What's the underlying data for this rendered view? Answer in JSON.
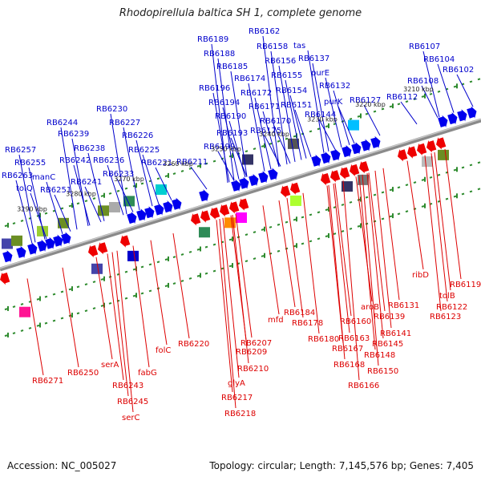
{
  "title": "Rhodopirellula baltica SH 1, complete genome",
  "footer": {
    "accession": "Accession: NC_005027",
    "topology": "Topology: circular; Length: 7,145,576 bp; Genes: 7,405"
  },
  "colors": {
    "forward_gene": "#0000ee",
    "reverse_gene": "#ee0000",
    "backbone": "#8a8a8a",
    "ruler_dots": "#2e8b2e",
    "forward_label": "#0000cc",
    "reverse_label": "#dd0000"
  },
  "ruler_labels": [
    "3290 kbp",
    "3280 kbp",
    "3270 kbp",
    "3260 kbp",
    "3250 kbp",
    "3240 kbp",
    "3230 kbp",
    "3220 kbp",
    "3210 kbp"
  ],
  "forward_labels": [
    "RB6257",
    "RB6255",
    "RB6263",
    "tolQ",
    "manC",
    "RB6251",
    "RB6244",
    "RB6239",
    "RB6238",
    "RB6242",
    "RB6236",
    "RB6241",
    "RB6233",
    "RB6230",
    "RB6227",
    "RB6226",
    "RB6225",
    "RB6221",
    "RB6211",
    "RB6199",
    "RB6189",
    "RB6188",
    "RB6185",
    "RB6196",
    "RB6194",
    "RB6190",
    "RB6193",
    "RB6174",
    "RB6172",
    "RB6171",
    "RB6175",
    "RB6170",
    "RB6162",
    "RB6158",
    "RB6156",
    "RB6155",
    "RB6154",
    "RB6151",
    "tas",
    "RB6137",
    "purE",
    "RB6132",
    "purK",
    "RB6144",
    "RB6127",
    "RB6112",
    "RB6108",
    "RB6107",
    "RB6104",
    "RB6102"
  ],
  "reverse_labels": [
    "RB6271",
    "RB6250",
    "serA",
    "RB6243",
    "RB6245",
    "serC",
    "fabG",
    "folC",
    "RB6220",
    "glyA",
    "RB6217",
    "RB6218",
    "RB6207",
    "RB6209",
    "RB6210",
    "mfd",
    "RB6184",
    "RB6178",
    "RB6180",
    "RB6167",
    "RB6168",
    "RB6166",
    "RB6163",
    "RB6160",
    "aroB",
    "RB6145",
    "RB6148",
    "RB6150",
    "RB6139",
    "RB6141",
    "RB6131",
    "ribD",
    "RB6122",
    "RB6123",
    "tolB",
    "RB6119"
  ]
}
